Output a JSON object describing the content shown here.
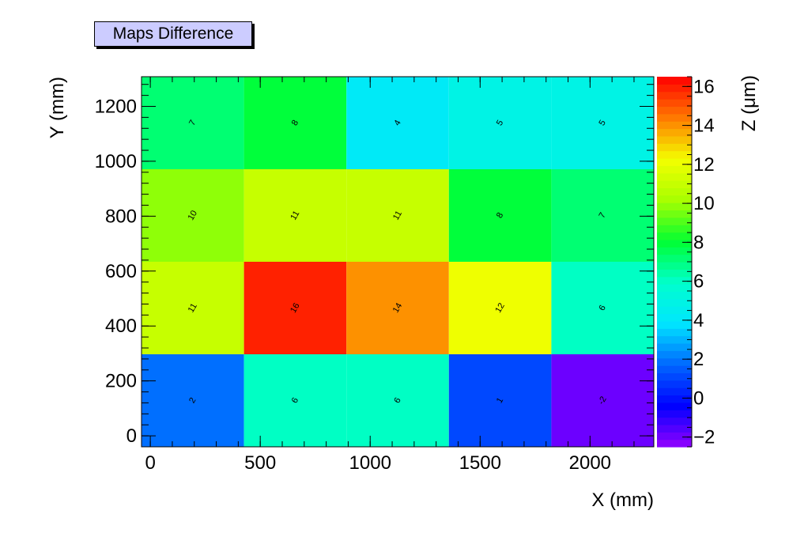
{
  "chart_data": {
    "type": "heatmap",
    "title": "Maps Difference",
    "xlabel": "X (mm)",
    "ylabel": "Y (mm)",
    "zlabel": "Z (μm)",
    "x_edges": [
      -40,
      426,
      892,
      1358,
      1824,
      2290
    ],
    "y_edges": [
      -40,
      297,
      634,
      971,
      1308
    ],
    "xlim": [
      -40,
      2290
    ],
    "ylim": [
      -40,
      1308
    ],
    "zlim": [
      -2.5,
      16.5
    ],
    "x_ticks": [
      0,
      500,
      1000,
      1500,
      2000
    ],
    "y_ticks": [
      0,
      200,
      400,
      600,
      800,
      1000,
      1200
    ],
    "z_ticks": [
      -2,
      0,
      2,
      4,
      6,
      8,
      10,
      12,
      14,
      16
    ],
    "values": [
      [
        2,
        6,
        6,
        1,
        -2
      ],
      [
        11,
        16,
        14,
        12,
        6
      ],
      [
        10,
        11,
        11,
        8,
        7
      ],
      [
        7,
        8,
        4,
        5,
        5
      ]
    ],
    "palette": [
      "#9400ff",
      "#0000ff",
      "#0066ff",
      "#00e6ff",
      "#00ffcc",
      "#00ff33",
      "#a8ff00",
      "#f4ff00",
      "#ff7a00",
      "#ff0000"
    ]
  }
}
